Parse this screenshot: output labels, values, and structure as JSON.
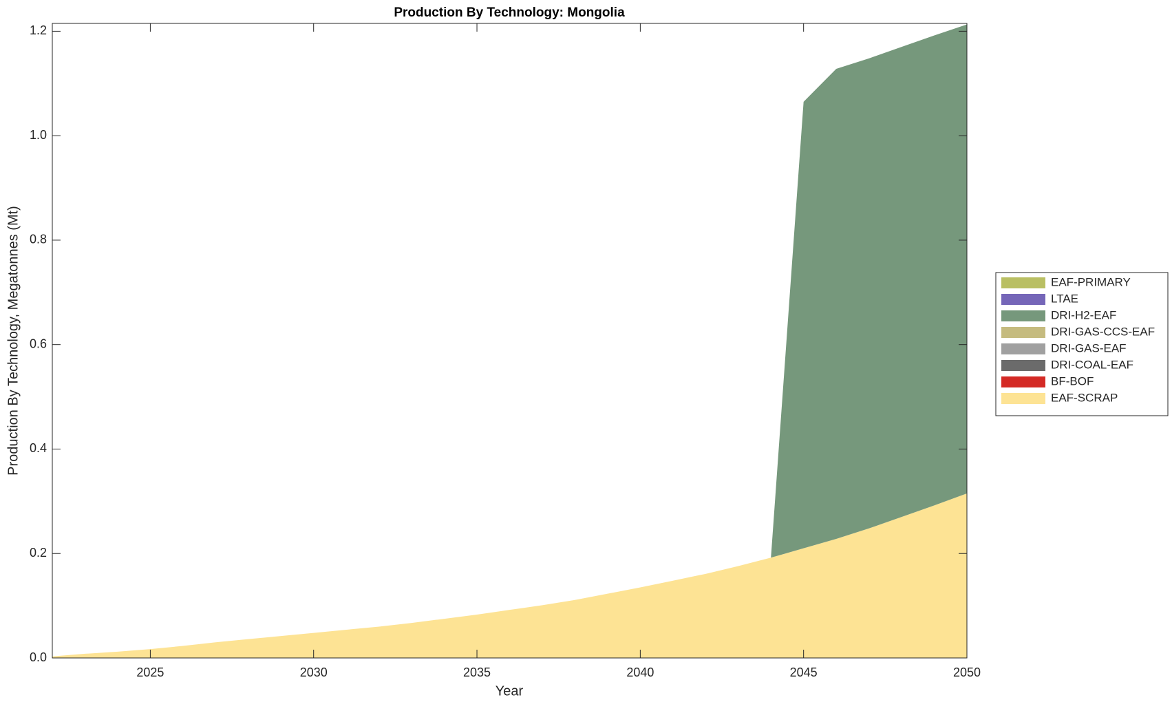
{
  "chart_data": {
    "type": "area",
    "stacked": true,
    "title": "Production By Technology: Mongolia",
    "xlabel": "Year",
    "ylabel": "Production By Technology, Megatonnes (Mt)",
    "x": [
      2022,
      2023,
      2024,
      2025,
      2026,
      2027,
      2028,
      2029,
      2030,
      2031,
      2032,
      2033,
      2034,
      2035,
      2036,
      2037,
      2038,
      2039,
      2040,
      2041,
      2042,
      2043,
      2044,
      2045,
      2046,
      2047,
      2048,
      2049,
      2050
    ],
    "series": [
      {
        "name": "EAF-SCRAP",
        "color": "#fde394",
        "values": [
          0.003,
          0.008,
          0.012,
          0.017,
          0.023,
          0.03,
          0.036,
          0.042,
          0.048,
          0.054,
          0.06,
          0.067,
          0.075,
          0.083,
          0.092,
          0.101,
          0.111,
          0.123,
          0.135,
          0.148,
          0.161,
          0.176,
          0.192,
          0.21,
          0.228,
          0.248,
          0.27,
          0.292,
          0.315
        ]
      },
      {
        "name": "BF-BOF",
        "color": "#d42a25",
        "values": [
          0,
          0,
          0,
          0,
          0,
          0,
          0,
          0,
          0,
          0,
          0,
          0,
          0,
          0,
          0,
          0,
          0,
          0,
          0,
          0,
          0,
          0,
          0,
          0,
          0,
          0,
          0,
          0,
          0
        ]
      },
      {
        "name": "DRI-COAL-EAF",
        "color": "#6b6b6b",
        "values": [
          0,
          0,
          0,
          0,
          0,
          0,
          0,
          0,
          0,
          0,
          0,
          0,
          0,
          0,
          0,
          0,
          0,
          0,
          0,
          0,
          0,
          0,
          0,
          0,
          0,
          0,
          0,
          0,
          0
        ]
      },
      {
        "name": "DRI-GAS-EAF",
        "color": "#a0a0a0",
        "values": [
          0,
          0,
          0,
          0,
          0,
          0,
          0,
          0,
          0,
          0,
          0,
          0,
          0,
          0,
          0,
          0,
          0,
          0,
          0,
          0,
          0,
          0,
          0,
          0,
          0,
          0,
          0,
          0,
          0
        ]
      },
      {
        "name": "DRI-GAS-CCS-EAF",
        "color": "#c5bb7f",
        "values": [
          0,
          0,
          0,
          0,
          0,
          0,
          0,
          0,
          0,
          0,
          0,
          0,
          0,
          0,
          0,
          0,
          0,
          0,
          0,
          0,
          0,
          0,
          0,
          0,
          0,
          0,
          0,
          0,
          0
        ]
      },
      {
        "name": "DRI-H2-EAF",
        "color": "#76987c",
        "values": [
          0,
          0,
          0,
          0,
          0,
          0,
          0,
          0,
          0,
          0,
          0,
          0,
          0,
          0,
          0,
          0,
          0,
          0,
          0,
          0,
          0,
          0,
          0,
          0.855,
          0.9,
          0.9,
          0.9,
          0.9,
          0.898
        ]
      },
      {
        "name": "LTAE",
        "color": "#7566b8",
        "values": [
          0,
          0,
          0,
          0,
          0,
          0,
          0,
          0,
          0,
          0,
          0,
          0,
          0,
          0,
          0,
          0,
          0,
          0,
          0,
          0,
          0,
          0,
          0,
          0,
          0,
          0,
          0,
          0,
          0
        ]
      },
      {
        "name": "EAF-PRIMARY",
        "color": "#b9bf63",
        "values": [
          0,
          0,
          0,
          0,
          0,
          0,
          0,
          0,
          0,
          0,
          0,
          0,
          0,
          0,
          0,
          0,
          0,
          0,
          0,
          0,
          0,
          0,
          0,
          0,
          0,
          0,
          0,
          0,
          0
        ]
      }
    ],
    "xlim": [
      2022,
      2050
    ],
    "xticks": [
      2025,
      2030,
      2035,
      2040,
      2045,
      2050
    ],
    "ylim": [
      0,
      1.215
    ],
    "yticks": [
      {
        "value": 0,
        "label": "0.0"
      },
      0.2,
      0.4,
      0.6,
      0.8,
      {
        "value": 1,
        "label": "1.0"
      },
      1.2
    ],
    "legend": "right"
  }
}
